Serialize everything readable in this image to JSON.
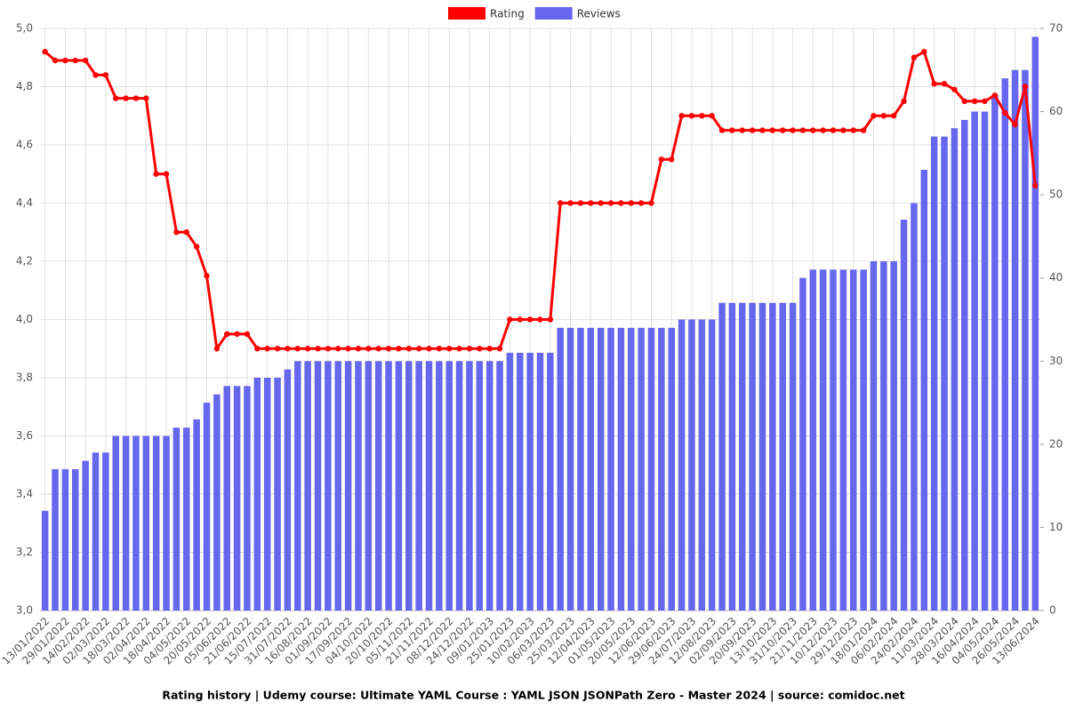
{
  "chart_data": {
    "type": "bar-line",
    "title": "Rating history | Udemy course: Ultimate YAML Course : YAML JSON JSONPath Zero - Master 2024 | source: comidoc.net",
    "categories": [
      "13/01/2022",
      null,
      "29/01/2022",
      null,
      "14/02/2022",
      null,
      "02/03/2022",
      null,
      "18/03/2022",
      null,
      "02/04/2022",
      null,
      "18/04/2022",
      null,
      "04/05/2022",
      null,
      "20/05/2022",
      null,
      "05/06/2022",
      null,
      "21/06/2022",
      null,
      "15/07/2022",
      null,
      "31/07/2022",
      null,
      "16/08/2022",
      null,
      "01/09/2022",
      null,
      "17/09/2022",
      null,
      "04/10/2022",
      null,
      "20/10/2022",
      null,
      "05/11/2022",
      null,
      "21/11/2022",
      null,
      "08/12/2022",
      null,
      "24/12/2022",
      null,
      "09/01/2023",
      null,
      "25/01/2023",
      null,
      "10/02/2023",
      null,
      "06/03/2023",
      null,
      "25/03/2023",
      null,
      "12/04/2023",
      null,
      "01/05/2023",
      null,
      "20/05/2023",
      null,
      "12/06/2023",
      null,
      "29/06/2023",
      null,
      "24/07/2023",
      null,
      "12/08/2023",
      null,
      "02/09/2023",
      null,
      "20/09/2023",
      null,
      "13/10/2023",
      null,
      "31/10/2023",
      null,
      "21/11/2023",
      null,
      "10/12/2023",
      null,
      "29/12/2023",
      null,
      "18/01/2024",
      null,
      "06/02/2024",
      null,
      "24/02/2024",
      null,
      "11/03/2024",
      null,
      "28/03/2024",
      null,
      "16/04/2024",
      null,
      "04/05/2024",
      null,
      "26/05/2024",
      null,
      "13/06/2024"
    ],
    "series": [
      {
        "name": "Rating",
        "color": "#ff0000",
        "kind": "line",
        "axis": "y",
        "values": [
          4.92,
          4.89,
          4.89,
          4.89,
          4.89,
          4.84,
          4.84,
          4.76,
          4.76,
          4.76,
          4.76,
          4.5,
          4.5,
          4.3,
          4.3,
          4.25,
          4.15,
          3.9,
          3.95,
          3.95,
          3.95,
          3.9,
          3.9,
          3.9,
          3.9,
          3.9,
          3.9,
          3.9,
          3.9,
          3.9,
          3.9,
          3.9,
          3.9,
          3.9,
          3.9,
          3.9,
          3.9,
          3.9,
          3.9,
          3.9,
          3.9,
          3.9,
          3.9,
          3.9,
          3.9,
          3.9,
          4.0,
          4.0,
          4.0,
          4.0,
          4.0,
          4.4,
          4.4,
          4.4,
          4.4,
          4.4,
          4.4,
          4.4,
          4.4,
          4.4,
          4.4,
          4.55,
          4.55,
          4.7,
          4.7,
          4.7,
          4.7,
          4.65,
          4.65,
          4.65,
          4.65,
          4.65,
          4.65,
          4.65,
          4.65,
          4.65,
          4.65,
          4.65,
          4.65,
          4.65,
          4.65,
          4.65,
          4.7,
          4.7,
          4.7,
          4.75,
          4.9,
          4.92,
          4.81,
          4.81,
          4.79,
          4.75,
          4.75,
          4.75,
          4.77,
          4.71,
          4.67,
          4.8,
          4.46
        ]
      },
      {
        "name": "Reviews",
        "color": "#6666ee",
        "kind": "bar",
        "axis": "y2",
        "values": [
          12,
          17,
          17,
          17,
          18,
          19,
          19,
          21,
          21,
          21,
          21,
          21,
          21,
          22,
          22,
          23,
          25,
          26,
          27,
          27,
          27,
          28,
          28,
          28,
          29,
          30,
          30,
          30,
          30,
          30,
          30,
          30,
          30,
          30,
          30,
          30,
          30,
          30,
          30,
          30,
          30,
          30,
          30,
          30,
          30,
          30,
          31,
          31,
          31,
          31,
          31,
          34,
          34,
          34,
          34,
          34,
          34,
          34,
          34,
          34,
          34,
          34,
          34,
          35,
          35,
          35,
          35,
          37,
          37,
          37,
          37,
          37,
          37,
          37,
          37,
          40,
          41,
          41,
          41,
          41,
          41,
          41,
          42,
          42,
          42,
          47,
          49,
          53,
          57,
          57,
          58,
          59,
          60,
          60,
          62,
          64,
          65,
          65,
          69
        ]
      }
    ],
    "ylim": [
      3,
      5
    ],
    "yticks": [
      {
        "value": 3,
        "label": "3,0"
      },
      {
        "value": 3.2,
        "label": "3,2"
      },
      {
        "value": 3.4,
        "label": "3,4"
      },
      {
        "value": 3.6,
        "label": "3,6"
      },
      {
        "value": 3.8,
        "label": "3,8"
      },
      {
        "value": 4,
        "label": "4,0"
      },
      {
        "value": 4.2,
        "label": "4,2"
      },
      {
        "value": 4.4,
        "label": "4,4"
      },
      {
        "value": 4.6,
        "label": "4,6"
      },
      {
        "value": 4.8,
        "label": "4,8"
      },
      {
        "value": 5,
        "label": "5,0"
      }
    ],
    "y2lim": [
      0,
      70
    ],
    "y2ticks": [
      0,
      10,
      20,
      30,
      40,
      50,
      60,
      70
    ],
    "grid": true,
    "legend": "top"
  }
}
